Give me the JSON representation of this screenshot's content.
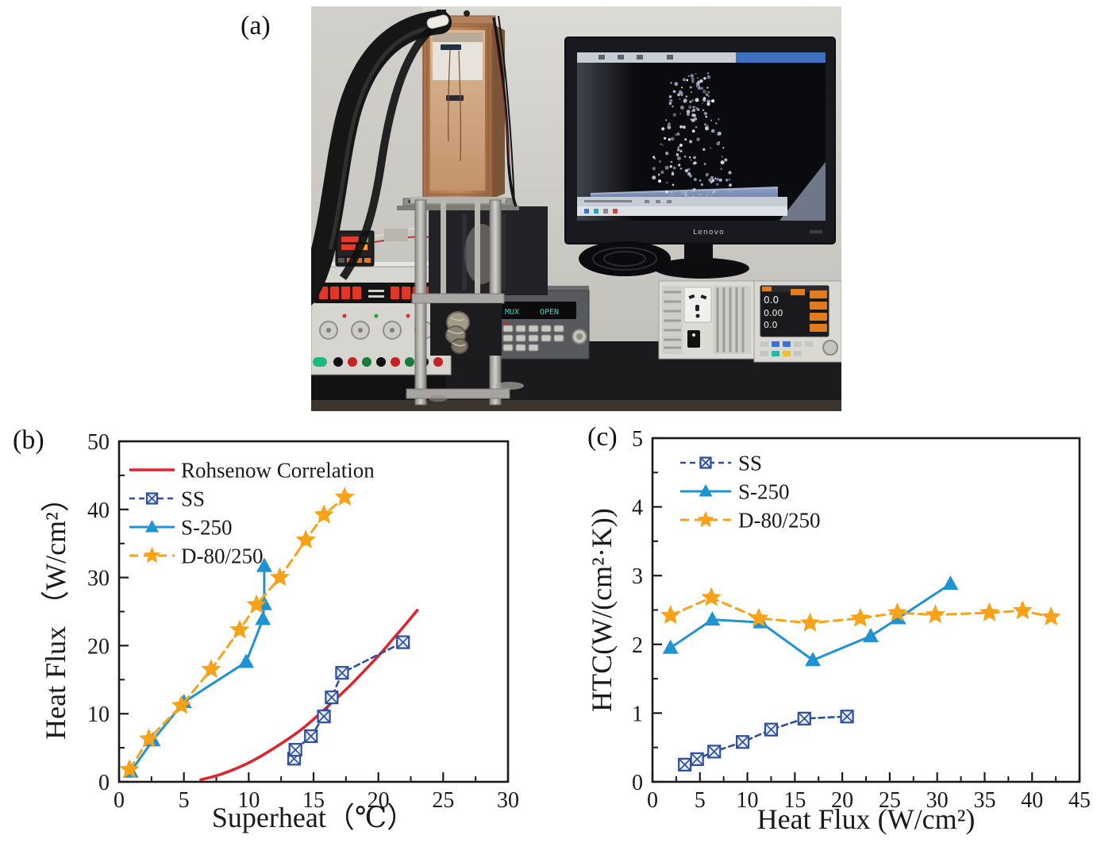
{
  "figure": {
    "panel_labels": {
      "a": "(a)",
      "b": "(b)",
      "c": "(c)"
    }
  },
  "photo": {
    "monitor_brand": "Lenovo",
    "psu_display": {
      "left": "MUX",
      "right": "OPEN"
    },
    "meter_readings": [
      "0.0",
      "0.00",
      "0.0"
    ]
  },
  "colors": {
    "rohsenow_red": "#e0232e",
    "ss_navy": "#2e4e9e",
    "s250_blue": "#2093d5",
    "d80250_orange": "#f7a219",
    "axis": "#1a1a1a"
  },
  "chart_data": [
    {
      "panel": "b",
      "type": "line",
      "title": "",
      "xlabel": "Superheat（℃）",
      "ylabel": "Heat Flux （W/cm²）",
      "xlim": [
        0,
        30
      ],
      "ylim": [
        0,
        50
      ],
      "x_ticks": [
        0,
        5,
        10,
        15,
        20,
        25,
        30
      ],
      "y_ticks": [
        0,
        10,
        20,
        30,
        40,
        50
      ],
      "x_minor_step": 2.5,
      "y_minor_step": 5,
      "grid": false,
      "legend_position": "top-left",
      "series": [
        {
          "name": "Rohsenow Correlation",
          "color": "#e0232e",
          "line": "solid",
          "width": 3.5,
          "marker": "none",
          "smooth": true,
          "points": [
            [
              6.3,
              0.3
            ],
            [
              8,
              1.2
            ],
            [
              10,
              2.8
            ],
            [
              12,
              5.0
            ],
            [
              14,
              7.6
            ],
            [
              16,
              10.9
            ],
            [
              18,
              14.5
            ],
            [
              20,
              18.5
            ],
            [
              21,
              20.7
            ],
            [
              22,
              22.9
            ],
            [
              23,
              25.2
            ]
          ]
        },
        {
          "name": "SS",
          "color": "#2e4e9e",
          "line": "short-dash",
          "width": 2.6,
          "marker": "crossed-square",
          "points": [
            [
              13.5,
              3.4
            ],
            [
              13.6,
              4.7
            ],
            [
              14.8,
              6.7
            ],
            [
              15.8,
              9.6
            ],
            [
              16.4,
              12.4
            ],
            [
              17.2,
              16.0
            ],
            [
              21.9,
              20.5
            ]
          ]
        },
        {
          "name": "S-250",
          "color": "#2093d5",
          "line": "solid",
          "width": 3,
          "marker": "triangle-up",
          "points": [
            [
              0.9,
              1.5
            ],
            [
              2.6,
              6.1
            ],
            [
              5.0,
              11.7
            ],
            [
              9.8,
              17.6
            ],
            [
              11.1,
              23.9
            ],
            [
              11.2,
              26.1
            ],
            [
              11.2,
              31.7
            ]
          ]
        },
        {
          "name": "D-80/250",
          "color": "#f7a219",
          "line": "dashed",
          "width": 3,
          "marker": "star",
          "points": [
            [
              0.8,
              1.8
            ],
            [
              2.3,
              6.3
            ],
            [
              4.8,
              11.2
            ],
            [
              7.1,
              16.5
            ],
            [
              9.3,
              22.3
            ],
            [
              10.6,
              26.0
            ],
            [
              12.4,
              30.0
            ],
            [
              14.4,
              35.5
            ],
            [
              15.8,
              39.2
            ],
            [
              17.4,
              41.8
            ]
          ]
        }
      ]
    },
    {
      "panel": "c",
      "type": "line",
      "title": "",
      "xlabel": "Heat Flux (W/cm²)",
      "ylabel": "HTC(W/(cm²·K))",
      "xlim": [
        0,
        45
      ],
      "ylim": [
        0,
        5
      ],
      "x_ticks": [
        0,
        5,
        10,
        15,
        20,
        25,
        30,
        35,
        40,
        45
      ],
      "y_ticks": [
        0,
        1,
        2,
        3,
        4,
        5
      ],
      "x_minor_step": 2.5,
      "y_minor_step": 0.5,
      "grid": false,
      "legend_position": "top-left",
      "series": [
        {
          "name": "SS",
          "color": "#2e4e9e",
          "line": "short-dash",
          "width": 2.6,
          "marker": "crossed-square",
          "points": [
            [
              3.4,
              0.25
            ],
            [
              4.7,
              0.33
            ],
            [
              6.5,
              0.44
            ],
            [
              9.5,
              0.58
            ],
            [
              12.5,
              0.76
            ],
            [
              16.0,
              0.92
            ],
            [
              20.5,
              0.95
            ]
          ]
        },
        {
          "name": "S-250",
          "color": "#2093d5",
          "line": "solid",
          "width": 3,
          "marker": "triangle-up",
          "points": [
            [
              1.9,
              1.95
            ],
            [
              6.3,
              2.36
            ],
            [
              11.4,
              2.32
            ],
            [
              16.9,
              1.77
            ],
            [
              23.0,
              2.12
            ],
            [
              25.9,
              2.38
            ],
            [
              31.4,
              2.88
            ]
          ]
        },
        {
          "name": "D-80/250",
          "color": "#f7a219",
          "line": "dashed",
          "width": 3,
          "marker": "star",
          "points": [
            [
              1.9,
              2.42
            ],
            [
              6.2,
              2.68
            ],
            [
              11.2,
              2.38
            ],
            [
              16.6,
              2.31
            ],
            [
              21.9,
              2.38
            ],
            [
              25.8,
              2.46
            ],
            [
              29.8,
              2.43
            ],
            [
              35.5,
              2.46
            ],
            [
              39.0,
              2.49
            ],
            [
              42.0,
              2.4
            ]
          ]
        }
      ]
    }
  ]
}
